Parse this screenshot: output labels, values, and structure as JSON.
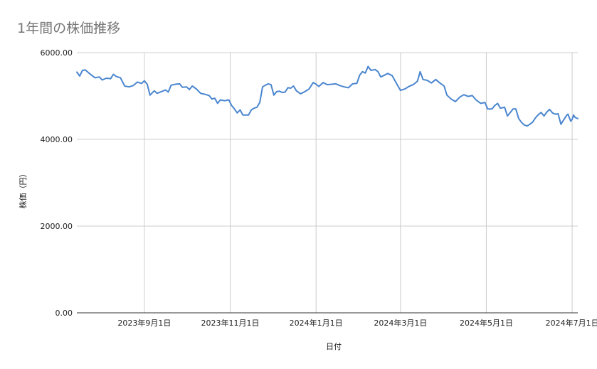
{
  "chart_data": {
    "type": "line",
    "title": "1年間の株価推移",
    "xlabel": "日付",
    "ylabel": "株価（円）",
    "x_range": [
      "2023-07-15",
      "2024-07-05"
    ],
    "ylim": [
      0,
      6000
    ],
    "y_ticks": [
      0,
      2000,
      4000,
      6000
    ],
    "y_tick_labels": [
      "0.00",
      "2000.00",
      "4000.00",
      "6000.00"
    ],
    "x_ticks": [
      "2023-09-01",
      "2023-11-01",
      "2024-01-01",
      "2024-03-01",
      "2024-05-01",
      "2024-07-01"
    ],
    "x_tick_labels": [
      "2023年9月1日",
      "2023年11月1日",
      "2024年1月1日",
      "2024年3月1日",
      "2024年5月1日",
      "2024年7月1日"
    ],
    "grid": true,
    "legend": "none",
    "series": [
      {
        "color": "#4a86cf",
        "points": [
          [
            "2023-07-15",
            5550
          ],
          [
            "2023-07-17",
            5460
          ],
          [
            "2023-07-19",
            5590
          ],
          [
            "2023-07-21",
            5600
          ],
          [
            "2023-07-25",
            5490
          ],
          [
            "2023-07-28",
            5420
          ],
          [
            "2023-07-31",
            5440
          ],
          [
            "2023-08-02",
            5370
          ],
          [
            "2023-08-05",
            5410
          ],
          [
            "2023-08-08",
            5400
          ],
          [
            "2023-08-10",
            5500
          ],
          [
            "2023-08-12",
            5450
          ],
          [
            "2023-08-15",
            5420
          ],
          [
            "2023-08-18",
            5230
          ],
          [
            "2023-08-21",
            5210
          ],
          [
            "2023-08-24",
            5240
          ],
          [
            "2023-08-27",
            5320
          ],
          [
            "2023-08-30",
            5290
          ],
          [
            "2023-09-01",
            5350
          ],
          [
            "2023-09-03",
            5270
          ],
          [
            "2023-09-05",
            5020
          ],
          [
            "2023-09-08",
            5120
          ],
          [
            "2023-09-10",
            5060
          ],
          [
            "2023-09-13",
            5100
          ],
          [
            "2023-09-16",
            5140
          ],
          [
            "2023-09-18",
            5090
          ],
          [
            "2023-09-20",
            5250
          ],
          [
            "2023-09-23",
            5270
          ],
          [
            "2023-09-26",
            5280
          ],
          [
            "2023-09-28",
            5200
          ],
          [
            "2023-10-01",
            5210
          ],
          [
            "2023-10-03",
            5150
          ],
          [
            "2023-10-05",
            5230
          ],
          [
            "2023-10-08",
            5160
          ],
          [
            "2023-10-11",
            5060
          ],
          [
            "2023-10-14",
            5040
          ],
          [
            "2023-10-17",
            5010
          ],
          [
            "2023-10-19",
            4930
          ],
          [
            "2023-10-21",
            4950
          ],
          [
            "2023-10-23",
            4830
          ],
          [
            "2023-10-25",
            4910
          ],
          [
            "2023-10-28",
            4890
          ],
          [
            "2023-10-31",
            4910
          ],
          [
            "2023-11-02",
            4780
          ],
          [
            "2023-11-04",
            4700
          ],
          [
            "2023-11-06",
            4610
          ],
          [
            "2023-11-08",
            4680
          ],
          [
            "2023-11-10",
            4560
          ],
          [
            "2023-11-12",
            4560
          ],
          [
            "2023-11-14",
            4560
          ],
          [
            "2023-11-16",
            4680
          ],
          [
            "2023-11-18",
            4720
          ],
          [
            "2023-11-20",
            4740
          ],
          [
            "2023-11-22",
            4850
          ],
          [
            "2023-11-24",
            5210
          ],
          [
            "2023-11-26",
            5250
          ],
          [
            "2023-11-28",
            5280
          ],
          [
            "2023-11-30",
            5260
          ],
          [
            "2023-12-02",
            5020
          ],
          [
            "2023-12-04",
            5100
          ],
          [
            "2023-12-06",
            5110
          ],
          [
            "2023-12-08",
            5080
          ],
          [
            "2023-12-10",
            5090
          ],
          [
            "2023-12-12",
            5190
          ],
          [
            "2023-12-14",
            5180
          ],
          [
            "2023-12-16",
            5230
          ],
          [
            "2023-12-18",
            5120
          ],
          [
            "2023-12-21",
            5050
          ],
          [
            "2023-12-24",
            5100
          ],
          [
            "2023-12-27",
            5160
          ],
          [
            "2023-12-30",
            5310
          ],
          [
            "2024-01-01",
            5270
          ],
          [
            "2024-01-03",
            5220
          ],
          [
            "2024-01-06",
            5310
          ],
          [
            "2024-01-09",
            5260
          ],
          [
            "2024-01-12",
            5270
          ],
          [
            "2024-01-15",
            5280
          ],
          [
            "2024-01-18",
            5240
          ],
          [
            "2024-01-21",
            5210
          ],
          [
            "2024-01-24",
            5190
          ],
          [
            "2024-01-27",
            5280
          ],
          [
            "2024-01-30",
            5290
          ],
          [
            "2024-02-01",
            5480
          ],
          [
            "2024-02-03",
            5560
          ],
          [
            "2024-02-05",
            5530
          ],
          [
            "2024-02-07",
            5680
          ],
          [
            "2024-02-09",
            5590
          ],
          [
            "2024-02-12",
            5610
          ],
          [
            "2024-02-14",
            5560
          ],
          [
            "2024-02-16",
            5440
          ],
          [
            "2024-02-18",
            5470
          ],
          [
            "2024-02-21",
            5520
          ],
          [
            "2024-02-24",
            5470
          ],
          [
            "2024-02-27",
            5300
          ],
          [
            "2024-03-01",
            5130
          ],
          [
            "2024-03-04",
            5160
          ],
          [
            "2024-03-07",
            5220
          ],
          [
            "2024-03-10",
            5260
          ],
          [
            "2024-03-13",
            5340
          ],
          [
            "2024-03-15",
            5560
          ],
          [
            "2024-03-17",
            5380
          ],
          [
            "2024-03-20",
            5360
          ],
          [
            "2024-03-23",
            5300
          ],
          [
            "2024-03-26",
            5380
          ],
          [
            "2024-03-29",
            5300
          ],
          [
            "2024-04-01",
            5230
          ],
          [
            "2024-04-03",
            5020
          ],
          [
            "2024-04-06",
            4930
          ],
          [
            "2024-04-09",
            4870
          ],
          [
            "2024-04-12",
            4970
          ],
          [
            "2024-04-15",
            5030
          ],
          [
            "2024-04-18",
            4990
          ],
          [
            "2024-04-21",
            5010
          ],
          [
            "2024-04-24",
            4900
          ],
          [
            "2024-04-27",
            4830
          ],
          [
            "2024-04-30",
            4850
          ],
          [
            "2024-05-02",
            4700
          ],
          [
            "2024-05-05",
            4700
          ],
          [
            "2024-05-07",
            4780
          ],
          [
            "2024-05-09",
            4830
          ],
          [
            "2024-05-11",
            4720
          ],
          [
            "2024-05-14",
            4740
          ],
          [
            "2024-05-16",
            4540
          ],
          [
            "2024-05-18",
            4620
          ],
          [
            "2024-05-20",
            4700
          ],
          [
            "2024-05-22",
            4700
          ],
          [
            "2024-05-24",
            4480
          ],
          [
            "2024-05-26",
            4390
          ],
          [
            "2024-05-28",
            4330
          ],
          [
            "2024-05-30",
            4310
          ],
          [
            "2024-06-01",
            4350
          ],
          [
            "2024-06-03",
            4400
          ],
          [
            "2024-06-05",
            4500
          ],
          [
            "2024-06-07",
            4570
          ],
          [
            "2024-06-09",
            4620
          ],
          [
            "2024-06-11",
            4540
          ],
          [
            "2024-06-13",
            4630
          ],
          [
            "2024-06-15",
            4690
          ],
          [
            "2024-06-17",
            4610
          ],
          [
            "2024-06-19",
            4580
          ],
          [
            "2024-06-21",
            4590
          ],
          [
            "2024-06-23",
            4350
          ],
          [
            "2024-06-25",
            4450
          ],
          [
            "2024-06-27",
            4550
          ],
          [
            "2024-06-28",
            4580
          ],
          [
            "2024-06-29",
            4500
          ],
          [
            "2024-06-30",
            4420
          ],
          [
            "2024-07-01",
            4460
          ],
          [
            "2024-07-02",
            4560
          ],
          [
            "2024-07-03",
            4510
          ],
          [
            "2024-07-04",
            4490
          ],
          [
            "2024-07-05",
            4480
          ]
        ]
      }
    ]
  }
}
